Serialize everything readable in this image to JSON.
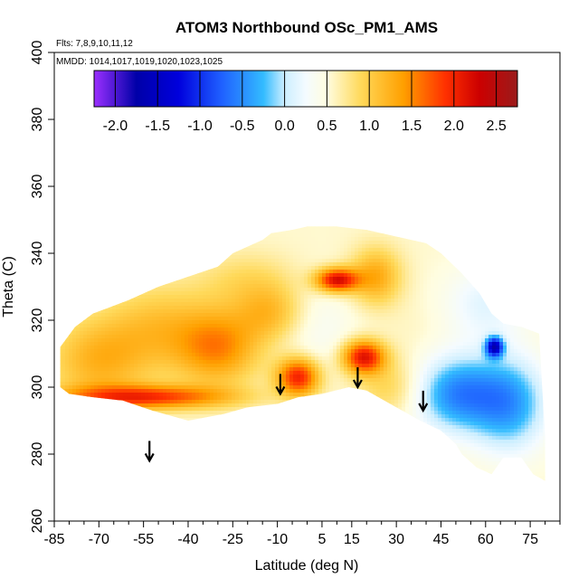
{
  "chart_data": {
    "type": "heatmap",
    "title": "ATOM3 Northbound OSc_PM1_AMS",
    "flights_text": "Flts: 7,8,9,10,11,12",
    "dates_text": "MMDD: 1014,1017,1019,1020,1023,1025",
    "xlabel": "Latitude (deg N)",
    "ylabel": "Theta (C)",
    "xlim": [
      -85,
      85
    ],
    "ylim": [
      260,
      400
    ],
    "x_ticks": [
      -85,
      -70,
      -55,
      -40,
      -25,
      -10,
      5,
      15,
      30,
      45,
      60,
      75
    ],
    "x_minor_ticks": [
      -80,
      -75,
      -65,
      -60,
      -50,
      -45,
      -35,
      -30,
      -20,
      -15,
      -5,
      0,
      10,
      20,
      25,
      35,
      40,
      50,
      55,
      65,
      70,
      80,
      85
    ],
    "x_tick_labels": [
      "-85",
      "-70",
      "-55",
      "-40",
      "-25",
      "-10",
      "5",
      "15",
      "30",
      "45",
      "60",
      "75"
    ],
    "y_ticks": [
      260,
      280,
      300,
      320,
      340,
      360,
      380,
      400
    ],
    "y_tick_labels": [
      "260",
      "280",
      "300",
      "320",
      "340",
      "360",
      "380",
      "400"
    ],
    "colorbar": {
      "range": [
        -2.25,
        2.75
      ],
      "ticks": [
        -2.0,
        -1.5,
        -1.0,
        -0.5,
        0.0,
        0.5,
        1.0,
        1.5,
        2.0,
        2.5
      ],
      "tick_labels": [
        "-2.0",
        "-1.5",
        "-1.0",
        "-0.5",
        "0.0",
        "0.5",
        "1.0",
        "1.5",
        "2.0",
        "2.5"
      ],
      "colors": [
        {
          "v": -2.25,
          "c": "#9b30ff"
        },
        {
          "v": -1.75,
          "c": "#0000a8"
        },
        {
          "v": -1.25,
          "c": "#0000dd"
        },
        {
          "v": -0.75,
          "c": "#1f5fff"
        },
        {
          "v": -0.25,
          "c": "#33bbff"
        },
        {
          "v": 0.0,
          "c": "#cceeff"
        },
        {
          "v": 0.25,
          "c": "#f4fbff"
        },
        {
          "v": 0.5,
          "c": "#fffde0"
        },
        {
          "v": 0.9,
          "c": "#ffd95a"
        },
        {
          "v": 1.4,
          "c": "#ffa000"
        },
        {
          "v": 1.9,
          "c": "#ff3000"
        },
        {
          "v": 2.3,
          "c": "#cc0000"
        },
        {
          "v": 2.75,
          "c": "#9b1b1b"
        }
      ]
    },
    "arrows_lat": [
      -53,
      -9,
      17,
      39
    ],
    "arrows_theta": [
      278,
      298,
      300,
      293
    ],
    "data_outline": [
      [
        -83,
        312
      ],
      [
        -78,
        318
      ],
      [
        -72,
        322
      ],
      [
        -66,
        324
      ],
      [
        -60,
        326
      ],
      [
        -50,
        330
      ],
      [
        -40,
        333
      ],
      [
        -30,
        336
      ],
      [
        -25,
        340
      ],
      [
        -20,
        342
      ],
      [
        -15,
        344
      ],
      [
        -12,
        346
      ],
      [
        -5,
        347
      ],
      [
        0,
        348
      ],
      [
        10,
        348
      ],
      [
        20,
        347
      ],
      [
        30,
        345
      ],
      [
        40,
        343
      ],
      [
        45,
        340
      ],
      [
        52,
        334
      ],
      [
        58,
        328
      ],
      [
        62,
        322
      ],
      [
        66,
        319
      ],
      [
        72,
        318
      ],
      [
        78,
        316
      ],
      [
        79,
        300
      ],
      [
        80,
        285
      ],
      [
        80,
        272
      ],
      [
        76,
        274
      ],
      [
        72,
        279
      ],
      [
        66,
        279
      ],
      [
        62,
        274
      ],
      [
        57,
        276
      ],
      [
        52,
        280
      ],
      [
        50,
        283
      ],
      [
        45,
        287
      ],
      [
        38,
        290
      ],
      [
        30,
        294
      ],
      [
        20,
        299
      ],
      [
        14,
        300
      ],
      [
        5,
        298
      ],
      [
        -3,
        297
      ],
      [
        -10,
        295
      ],
      [
        -20,
        294
      ],
      [
        -28,
        292
      ],
      [
        -40,
        290
      ],
      [
        -52,
        293
      ],
      [
        -62,
        296
      ],
      [
        -72,
        297
      ],
      [
        -80,
        298
      ],
      [
        -83,
        300
      ]
    ],
    "anomaly_blobs": [
      {
        "lat": -70,
        "theta": 308,
        "sx": 12,
        "sy": 9,
        "v": 1.3
      },
      {
        "lat": -50,
        "theta": 318,
        "sx": 12,
        "sy": 9,
        "v": 1.1
      },
      {
        "lat": -30,
        "theta": 312,
        "sx": 10,
        "sy": 8,
        "v": 1.6
      },
      {
        "lat": -12,
        "theta": 322,
        "sx": 8,
        "sy": 6,
        "v": 1.2
      },
      {
        "lat": -55,
        "theta": 297,
        "sx": 20,
        "sy": 2.5,
        "v": 2.0
      },
      {
        "lat": -3,
        "theta": 303,
        "sx": 5,
        "sy": 4,
        "v": 2.2
      },
      {
        "lat": 10,
        "theta": 332,
        "sx": 5,
        "sy": 2.5,
        "v": 2.4
      },
      {
        "lat": 19,
        "theta": 309,
        "sx": 5,
        "sy": 3.5,
        "v": 2.3
      },
      {
        "lat": 23,
        "theta": 333,
        "sx": 6,
        "sy": 6,
        "v": 1.4
      },
      {
        "lat": 28,
        "theta": 300,
        "sx": 8,
        "sy": 6,
        "v": 1.0
      },
      {
        "lat": 36,
        "theta": 316,
        "sx": 8,
        "sy": 7,
        "v": 0.6
      },
      {
        "lat": 50,
        "theta": 298,
        "sx": 10,
        "sy": 8,
        "v": -0.6
      },
      {
        "lat": 68,
        "theta": 295,
        "sx": 9,
        "sy": 10,
        "v": -0.5
      },
      {
        "lat": 60,
        "theta": 325,
        "sx": 10,
        "sy": 8,
        "v": 0.1
      },
      {
        "lat": 63,
        "theta": 312,
        "sx": 2,
        "sy": 2,
        "v": -1.6
      },
      {
        "lat": 3,
        "theta": 318,
        "sx": 10,
        "sy": 10,
        "v": 0.3
      },
      {
        "lat": -20,
        "theta": 332,
        "sx": 12,
        "sy": 6,
        "v": 0.9
      }
    ]
  }
}
